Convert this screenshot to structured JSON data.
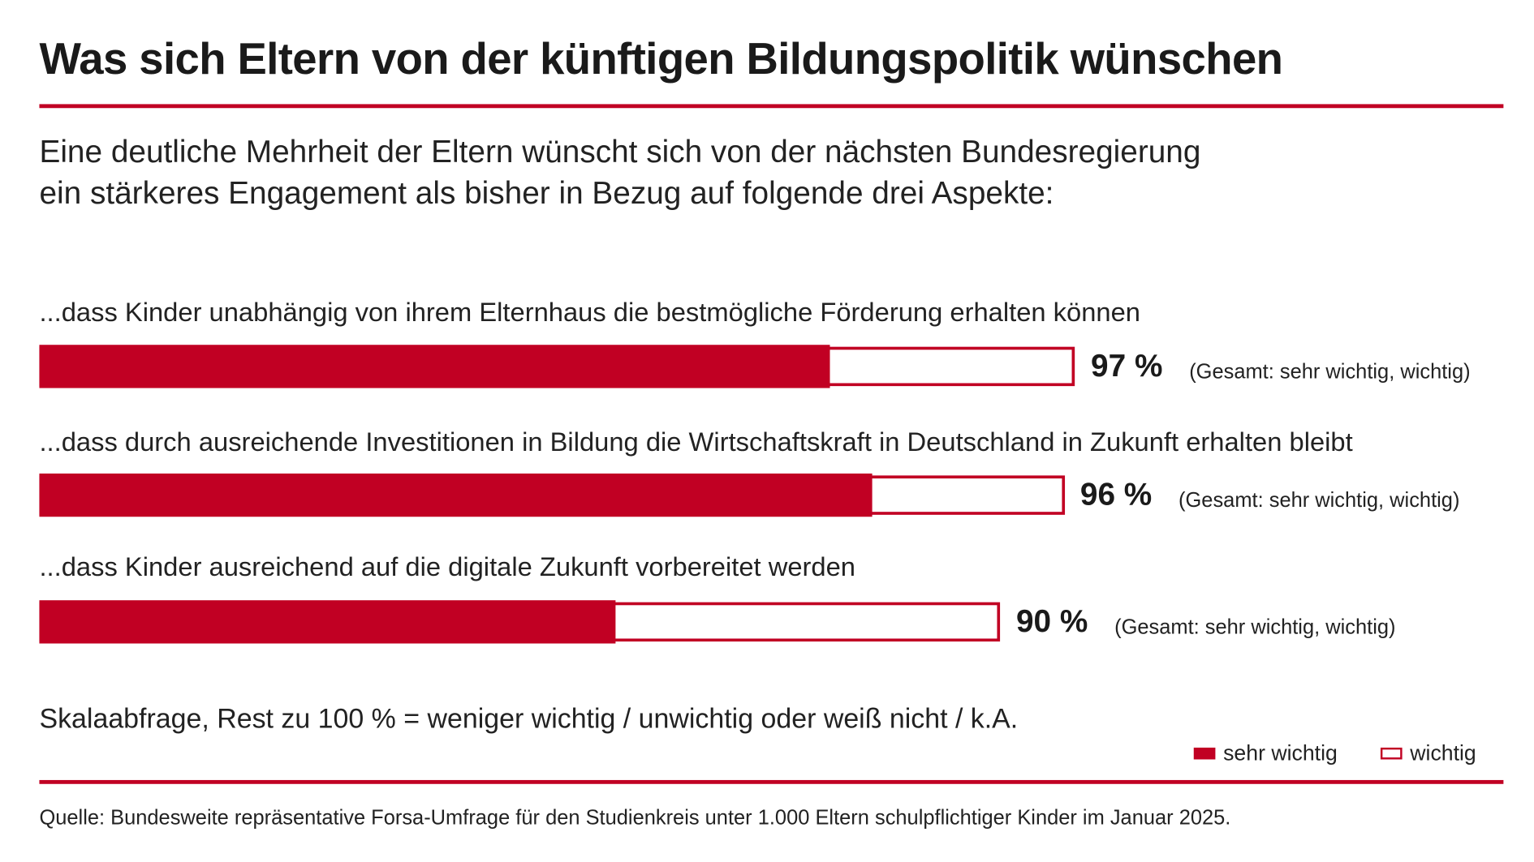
{
  "title": "Was sich Eltern von der künftigen Bildungspolitik wünschen",
  "subtitle_lines": [
    "Eine deutliche Mehrheit der Eltern wünscht sich von der nächsten Bundesregierung",
    "ein stärkeres Engagement als bisher in Bezug auf folgende drei Aspekte:"
  ],
  "colors": {
    "sehr_wichtig": "#c10023",
    "wichtig": "#ffffff",
    "accent": "#c10023"
  },
  "chart_data": {
    "type": "bar",
    "orientation": "horizontal",
    "stacked": true,
    "categories": [
      "...dass Kinder unabhängig von ihrem Elternhaus die bestmögliche Förderung erhalten können",
      "...dass durch ausreichende Investitionen in Bildung die Wirtschaftskraft in Deutschland in Zukunft erhalten bleibt",
      "...dass Kinder ausreichend auf die digitale Zukunft vorbereitet werden"
    ],
    "series": [
      {
        "name": "sehr wichtig",
        "values": [
          74,
          78,
          54
        ]
      },
      {
        "name": "wichtig",
        "values": [
          23,
          18,
          36
        ]
      }
    ],
    "totals": [
      97,
      96,
      90
    ],
    "total_labels": [
      "97 %",
      "96 %",
      "90 %"
    ],
    "total_note": "(Gesamt: sehr wichtig, wichtig)",
    "xlim": [
      0,
      100
    ],
    "legend": "bottom-right"
  },
  "scale_note": "Skalaabfrage, Rest zu 100 % = weniger wichtig / unwichtig oder weiß nicht / k.A.",
  "legend_labels": [
    "sehr wichtig",
    "wichtig"
  ],
  "source": "Quelle: Bundesweite repräsentative Forsa-Umfrage für den Studienkreis unter 1.000 Eltern schulpflichtiger Kinder im Januar 2025."
}
